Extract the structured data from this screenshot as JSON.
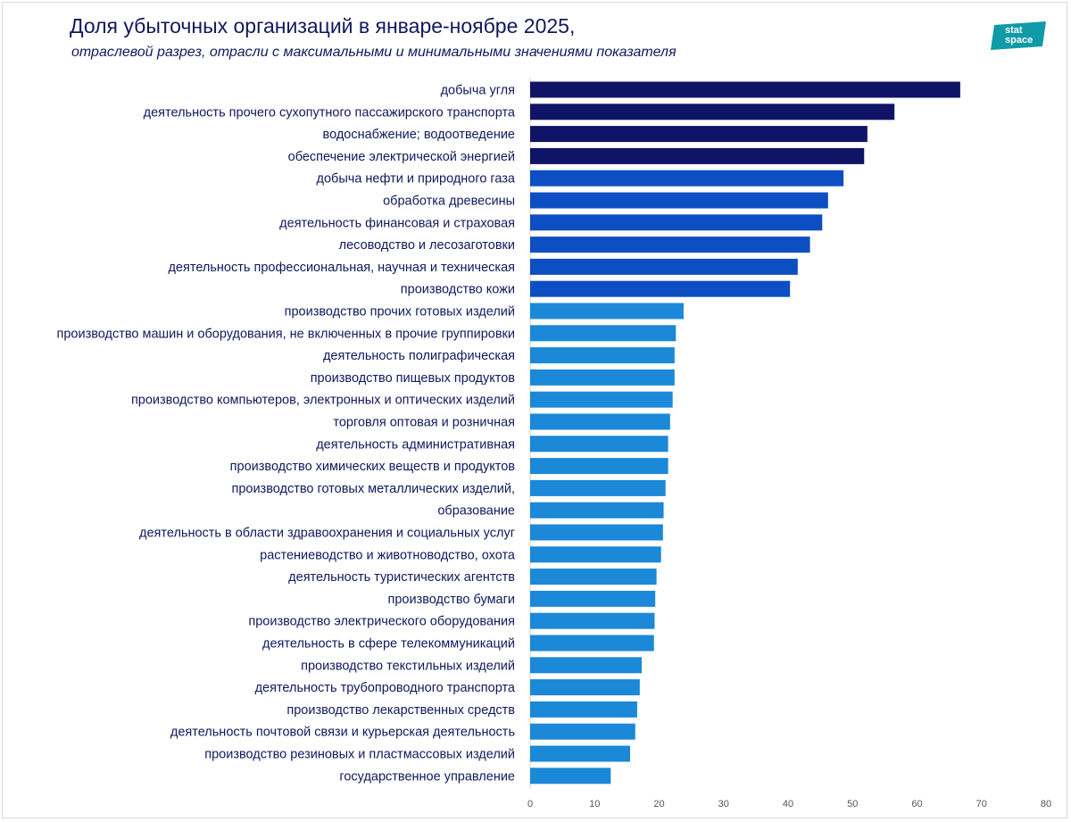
{
  "chart_data": {
    "type": "bar",
    "orientation": "horizontal",
    "title": "Доля убыточных организаций в январе-ноябре 2025,",
    "subtitle": "отраслевой разрез, отрасли с максимальными и минимальными значениями показателя",
    "xlim": [
      0,
      80
    ],
    "x_ticks": [
      "0",
      "10",
      "20",
      "30",
      "40",
      "50",
      "60",
      "70",
      "80"
    ],
    "colors": {
      "dark": "#101466",
      "mid": "#0d4fc3",
      "light": "#1b88d8"
    },
    "categories": [
      "добыча угля",
      "деятельность прочего сухопутного пассажирского транспорта",
      "водоснабжение; водоотведение",
      "обеспечение электрической энергией",
      "добыча нефти и природного газа",
      "обработка древесины",
      "деятельность финансовая и страховая",
      "лесоводство и лесозаготовки",
      "деятельность профессиональная, научная и техническая",
      "производство кожи",
      "производство прочих готовых изделий",
      "производство машин и оборудования, не включенных в прочие группировки",
      "деятельность полиграфическая",
      "производство пищевых продуктов",
      "производство компьютеров, электронных и оптических изделий",
      "торговля оптовая и розничная",
      "деятельность административная",
      "производство химических веществ и продуктов",
      "производство готовых металлических изделий,",
      "образование",
      "деятельность в области здравоохранения и социальных услуг",
      "растениеводство и животноводство, охота",
      "деятельность туристических агентств",
      "производство бумаги",
      "производство электрического оборудования",
      "деятельность в сфере телекоммуникаций",
      "производство текстильных изделий",
      "деятельность трубопроводного транспорта",
      "производство лекарственных средств",
      "деятельность почтовой связи и курьерская деятельность",
      "производство резиновых и пластмассовых изделий",
      "государственное управление"
    ],
    "values": [
      66.7,
      56.5,
      52.3,
      51.8,
      48.6,
      46.2,
      45.3,
      43.4,
      41.5,
      40.3,
      23.8,
      22.6,
      22.4,
      22.4,
      22.1,
      21.7,
      21.4,
      21.4,
      21.0,
      20.7,
      20.6,
      20.3,
      19.6,
      19.4,
      19.3,
      19.2,
      17.3,
      17.0,
      16.6,
      16.3,
      15.5,
      12.5
    ],
    "bar_colors": [
      "dark",
      "dark",
      "dark",
      "dark",
      "mid",
      "mid",
      "mid",
      "mid",
      "mid",
      "mid",
      "light",
      "light",
      "light",
      "light",
      "light",
      "light",
      "light",
      "light",
      "light",
      "light",
      "light",
      "light",
      "light",
      "light",
      "light",
      "light",
      "light",
      "light",
      "light",
      "light",
      "light",
      "light"
    ]
  },
  "logo": {
    "line1": "stat",
    "line2": "space",
    "color": "#0e9aa7"
  }
}
